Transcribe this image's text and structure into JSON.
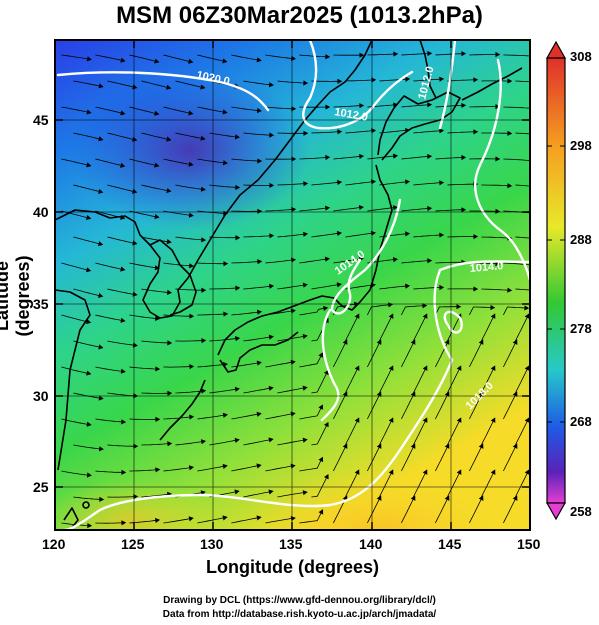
{
  "header": {
    "title": "MSM 06Z30Mar2025 (1013.2hPa)"
  },
  "axes": {
    "xlabel": "Longitude (degrees)",
    "ylabel": "Latitude  (degrees)",
    "xticks": [
      "120",
      "125",
      "130",
      "135",
      "140",
      "145",
      "150"
    ],
    "yticks": [
      "25",
      "30",
      "35",
      "40",
      "45"
    ]
  },
  "colorbar": {
    "ticks": [
      "308",
      "298",
      "288",
      "278",
      "268",
      "258"
    ]
  },
  "contours": {
    "labels": [
      "1020.0",
      "1012.0",
      "1012.0",
      "1014.0",
      "1014.0",
      "1018.0"
    ]
  },
  "credits": {
    "line1": "Drawing by DCL (https://www.gfd-dennou.org/library/dcl/)",
    "line2": "Data from http://database.rish.kyoto-u.ac.jp/arch/jmadata/"
  },
  "colors": {
    "cold": "#1f3fe0",
    "mid": "#27c7a0",
    "warm": "#f7d22a",
    "coast": "#000000",
    "isobar": "#ffffff"
  }
}
